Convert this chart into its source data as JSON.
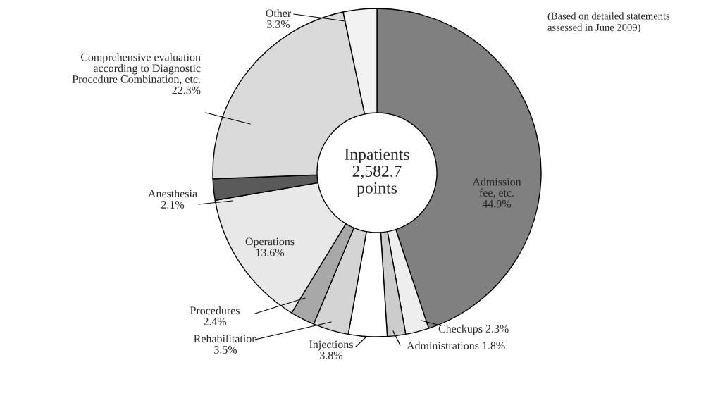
{
  "chart_data": {
    "type": "donut",
    "categories": [
      "Admission\nfee, etc.",
      "Checkups",
      "Administrations",
      "Injections",
      "Rehabilitation",
      "Procedures",
      "Operations",
      "Anesthesia",
      "Comprehensive evaluation\naccording to Diagnostic\nProcedure Combination, etc.",
      "Other"
    ],
    "values": [
      44.9,
      2.3,
      1.8,
      3.8,
      3.5,
      2.4,
      13.6,
      2.1,
      22.3,
      3.3
    ],
    "value_labels": [
      "44.9%",
      "2.3%",
      "1.8%",
      "3.8%",
      "3.5%",
      "2.4%",
      "13.6%",
      "2.1%",
      "22.3%",
      "3.3%"
    ],
    "colors": [
      "#808080",
      "#eeeeee",
      "#cccccc",
      "#ffffff",
      "#d4d4d4",
      "#a8a8a8",
      "#e8e8e8",
      "#5a5a5a",
      "#dadada",
      "#f2f2f2"
    ],
    "annotations": [
      "Inpatients\n2,582.7\npoints",
      "(Based on detailed statements\nassessed in June 2009)"
    ]
  }
}
